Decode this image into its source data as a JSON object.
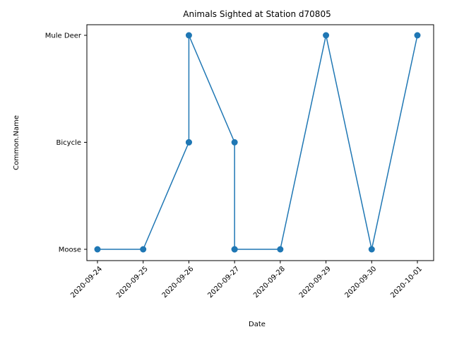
{
  "chart_data": {
    "type": "line",
    "title": "Animals Sighted at Station d70805",
    "xlabel": "Date",
    "ylabel": "Common.Name",
    "x_ticks": [
      "2020-09-24",
      "2020-09-25",
      "2020-09-26",
      "2020-09-27",
      "2020-09-28",
      "2020-09-29",
      "2020-09-30",
      "2020-10-01"
    ],
    "y_categories": [
      "Moose",
      "Bicycle",
      "Mule Deer"
    ],
    "grid": false,
    "legend": "none",
    "line_color": "#1f77b4",
    "marker": "circle",
    "series": [
      {
        "points": [
          {
            "x": "2020-09-24",
            "y": "Moose"
          },
          {
            "x": "2020-09-25",
            "y": "Moose"
          },
          {
            "x": "2020-09-26",
            "y": "Bicycle"
          },
          {
            "x": "2020-09-26",
            "y": "Bicycle"
          },
          {
            "x": "2020-09-26",
            "y": "Mule Deer"
          },
          {
            "x": "2020-09-27",
            "y": "Bicycle"
          },
          {
            "x": "2020-09-27",
            "y": "Moose"
          },
          {
            "x": "2020-09-27",
            "y": "Moose"
          },
          {
            "x": "2020-09-28",
            "y": "Moose"
          },
          {
            "x": "2020-09-29",
            "y": "Mule Deer"
          },
          {
            "x": "2020-09-30",
            "y": "Moose"
          },
          {
            "x": "2020-10-01",
            "y": "Mule Deer"
          }
        ]
      }
    ]
  }
}
